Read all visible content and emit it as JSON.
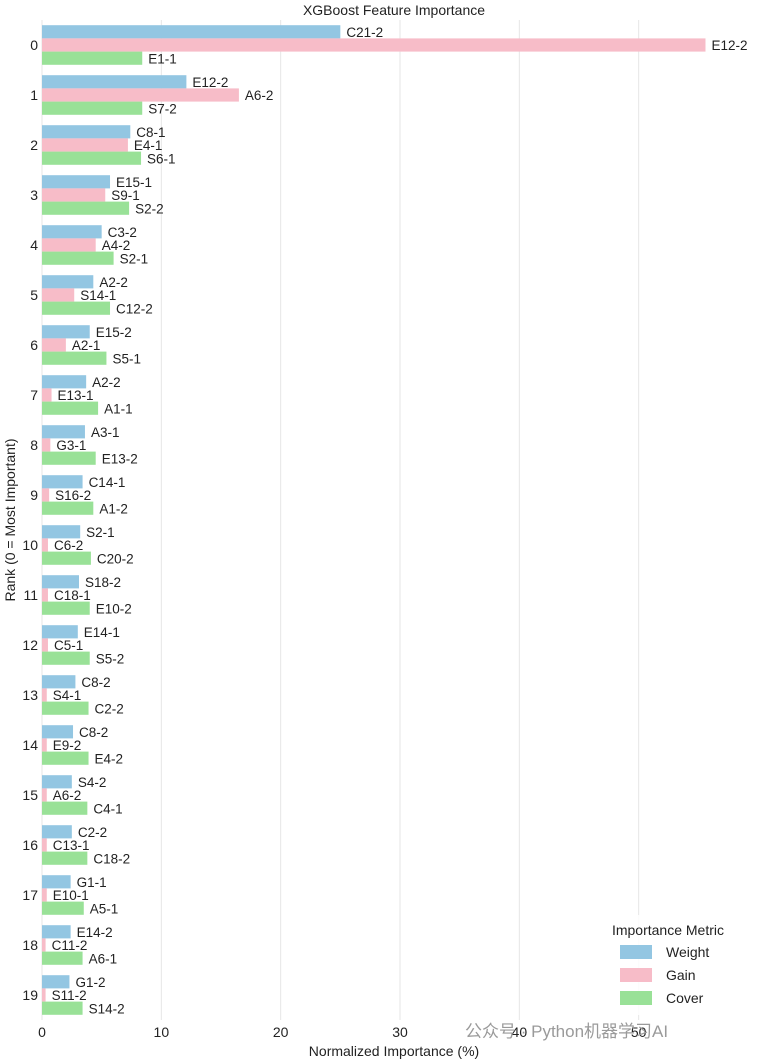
{
  "chart_data": {
    "type": "bar",
    "orientation": "horizontal",
    "title": "XGBoost Feature Importance",
    "xlabel": "Normalized Importance (%)",
    "ylabel": "Rank (0 = Most Important)",
    "xlim": [
      0,
      60
    ],
    "xticks": [
      0,
      10,
      20,
      30,
      40,
      50
    ],
    "categories": [
      "0",
      "1",
      "2",
      "3",
      "4",
      "5",
      "6",
      "7",
      "8",
      "9",
      "10",
      "11",
      "12",
      "13",
      "14",
      "15",
      "16",
      "17",
      "18",
      "19"
    ],
    "grid": "vertical",
    "legend": {
      "title": "Importance Metric",
      "placement": "bottom-right",
      "entries": [
        "Weight",
        "Gain",
        "Cover"
      ]
    },
    "series": [
      {
        "name": "Weight",
        "color": "#93c6e2",
        "values": [
          25.0,
          12.1,
          7.4,
          5.7,
          5.0,
          4.3,
          4.0,
          3.7,
          3.6,
          3.4,
          3.2,
          3.1,
          3.0,
          2.8,
          2.6,
          2.5,
          2.5,
          2.4,
          2.4,
          2.3
        ],
        "labels": [
          "C21-2",
          "E12-2",
          "C8-1",
          "E15-1",
          "C3-2",
          "A2-2",
          "E15-2",
          "A2-2",
          "A3-1",
          "C14-1",
          "S2-1",
          "S18-2",
          "E14-1",
          "C8-2",
          "C8-2",
          "S4-2",
          "C2-2",
          "G1-1",
          "E14-2",
          "G1-2"
        ]
      },
      {
        "name": "Gain",
        "color": "#f7bcc8",
        "values": [
          55.6,
          16.5,
          7.2,
          5.3,
          4.5,
          2.7,
          2.0,
          0.8,
          0.7,
          0.6,
          0.5,
          0.5,
          0.5,
          0.4,
          0.4,
          0.4,
          0.4,
          0.4,
          0.3,
          0.3
        ],
        "labels": [
          "E12-2",
          "A6-2",
          "E4-1",
          "S9-1",
          "A4-2",
          "S14-1",
          "A2-1",
          "E13-1",
          "G3-1",
          "S16-2",
          "C6-2",
          "C18-1",
          "C5-1",
          "S4-1",
          "E9-2",
          "A6-2",
          "C13-1",
          "E10-1",
          "C11-2",
          "S11-2"
        ]
      },
      {
        "name": "Cover",
        "color": "#99e197",
        "values": [
          8.4,
          8.4,
          8.3,
          7.3,
          6.0,
          5.7,
          5.4,
          4.7,
          4.5,
          4.3,
          4.1,
          4.0,
          4.0,
          3.9,
          3.9,
          3.8,
          3.8,
          3.5,
          3.4,
          3.4
        ],
        "labels": [
          "E1-1",
          "S7-2",
          "S6-1",
          "S2-2",
          "S2-1",
          "C12-2",
          "S5-1",
          "A1-1",
          "E13-2",
          "A1-2",
          "C20-2",
          "E10-2",
          "S5-2",
          "C2-2",
          "E4-2",
          "C4-1",
          "C18-2",
          "A5-1",
          "A6-1",
          "S14-2"
        ]
      }
    ]
  },
  "watermark": "公众号 · Python机器学习AI"
}
